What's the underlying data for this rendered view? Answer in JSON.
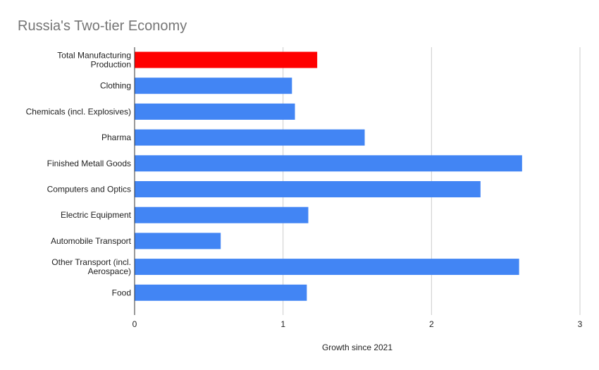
{
  "chart_data": {
    "type": "bar",
    "orientation": "horizontal",
    "title": "Russia's Two-tier Economy",
    "xlabel": "Growth since 2021",
    "ylabel": "",
    "xlim": [
      0,
      3
    ],
    "xticks": [
      0,
      1,
      2,
      3
    ],
    "grid": true,
    "legend": "none",
    "categories": [
      [
        "Total Manufacturing",
        "Production"
      ],
      [
        "Clothing"
      ],
      [
        "Chemicals (incl. Explosives)"
      ],
      [
        "Pharma"
      ],
      [
        "Finished Metall Goods"
      ],
      [
        "Computers and Optics"
      ],
      [
        "Electric Equipment"
      ],
      [
        "Automobile Transport"
      ],
      [
        "Other Transport (incl.",
        "Aerospace)"
      ],
      [
        "Food"
      ]
    ],
    "values": [
      1.23,
      1.06,
      1.08,
      1.55,
      2.61,
      2.33,
      1.17,
      0.58,
      2.59,
      1.16
    ],
    "colors": [
      "#ff0000",
      "#4285f4",
      "#4285f4",
      "#4285f4",
      "#4285f4",
      "#4285f4",
      "#4285f4",
      "#4285f4",
      "#4285f4",
      "#4285f4"
    ],
    "gridline_color": "#cccccc",
    "axis_color": "#333333"
  }
}
